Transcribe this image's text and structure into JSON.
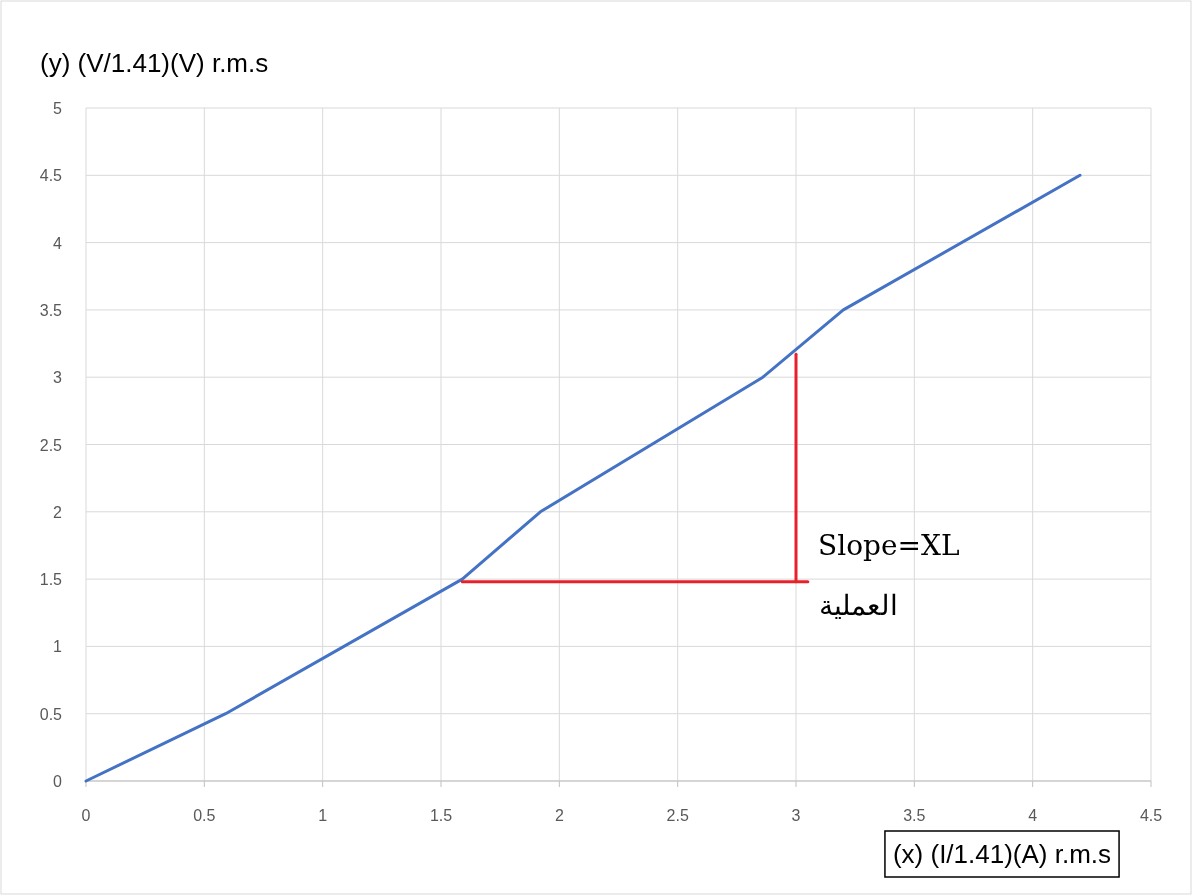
{
  "chart_data": {
    "type": "line",
    "xlabel": "(x) (I/1.41)(A) r.m.s",
    "ylabel": "(y) (V/1.41)(V) r.m.s",
    "xlim": [
      0,
      4.5
    ],
    "xticks": [
      0,
      0.5,
      1,
      1.5,
      2,
      2.5,
      3,
      3.5,
      4,
      4.5
    ],
    "ylim": [
      0,
      5
    ],
    "yticks": [
      0,
      0.5,
      1,
      1.5,
      2,
      2.5,
      3,
      3.5,
      4,
      4.5,
      5
    ],
    "grid": true,
    "series": [
      {
        "color": "#4472c4",
        "x": [
          0,
          0.59,
          1.59,
          1.92,
          2.86,
          3.2,
          4.2
        ],
        "values": [
          0,
          0.5,
          1.5,
          2.0,
          3.0,
          3.5,
          4.5
        ]
      },
      {
        "color": "#e8202a",
        "x": [
          1.59,
          3.05
        ],
        "values": [
          1.48,
          1.48
        ]
      },
      {
        "color": "#e8202a",
        "x": [
          3.0,
          3.0
        ],
        "values": [
          1.48,
          3.17
        ]
      }
    ],
    "annotations": [
      "Slope=XL",
      "العملية"
    ]
  }
}
